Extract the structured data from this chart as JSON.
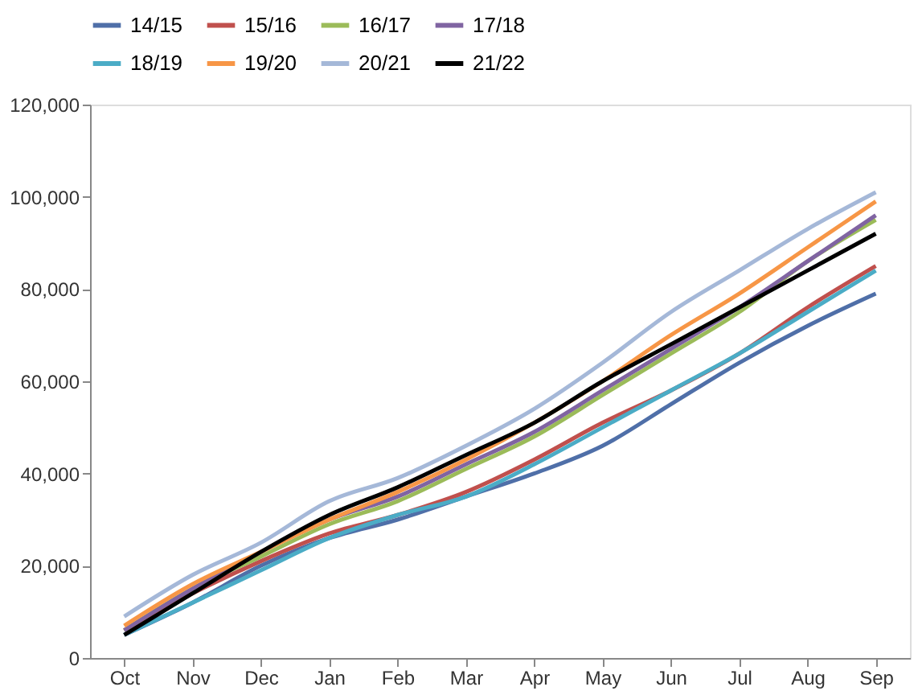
{
  "chart_data": {
    "type": "line",
    "categories": [
      "Oct",
      "Nov",
      "Dec",
      "Jan",
      "Feb",
      "Mar",
      "Apr",
      "May",
      "Jun",
      "Jul",
      "Aug",
      "Sep"
    ],
    "ylim": [
      0,
      120000
    ],
    "yticks": [
      {
        "value": 0,
        "label": "0"
      },
      {
        "value": 20000,
        "label": "20,000"
      },
      {
        "value": 40000,
        "label": "40,000"
      },
      {
        "value": 60000,
        "label": "60,000"
      },
      {
        "value": 80000,
        "label": "80,000"
      },
      {
        "value": 100000,
        "label": "100,000"
      },
      {
        "value": 120000,
        "label": "120,000"
      }
    ],
    "grid": false,
    "legend": "top",
    "marker": "none",
    "line_style": "solid",
    "series": [
      {
        "name": "14/15",
        "color": "#4f6fa8",
        "values": [
          5000,
          12000,
          20000,
          26000,
          30000,
          35000,
          40000,
          46000,
          55000,
          64000,
          72000,
          79000
        ]
      },
      {
        "name": "15/16",
        "color": "#c0504d",
        "values": [
          6000,
          14000,
          21000,
          27000,
          31000,
          36000,
          43000,
          51000,
          58000,
          66000,
          76000,
          85000
        ]
      },
      {
        "name": "16/17",
        "color": "#9bbb59",
        "values": [
          6000,
          15000,
          22000,
          29000,
          34000,
          41000,
          48000,
          57000,
          66000,
          75000,
          86000,
          95000
        ]
      },
      {
        "name": "17/18",
        "color": "#8064a2",
        "values": [
          6000,
          15000,
          23000,
          30000,
          35000,
          42000,
          49000,
          58000,
          67000,
          76000,
          86000,
          96000
        ]
      },
      {
        "name": "18/19",
        "color": "#4bacc6",
        "values": [
          5000,
          12000,
          19000,
          26000,
          31000,
          35000,
          42000,
          50000,
          58000,
          66000,
          75000,
          84000
        ]
      },
      {
        "name": "19/20",
        "color": "#f79646",
        "values": [
          7000,
          16000,
          23000,
          30000,
          36000,
          43000,
          51000,
          60000,
          70000,
          79000,
          89000,
          99000
        ]
      },
      {
        "name": "20/21",
        "color": "#a5b8d8",
        "values": [
          9000,
          18000,
          25000,
          34000,
          39000,
          46000,
          54000,
          64000,
          75000,
          84000,
          93000,
          101000
        ]
      },
      {
        "name": "21/22",
        "color": "#000000",
        "values": [
          5000,
          14000,
          23000,
          31000,
          37000,
          44000,
          51000,
          60000,
          68000,
          76000,
          84000,
          92000
        ]
      }
    ]
  }
}
